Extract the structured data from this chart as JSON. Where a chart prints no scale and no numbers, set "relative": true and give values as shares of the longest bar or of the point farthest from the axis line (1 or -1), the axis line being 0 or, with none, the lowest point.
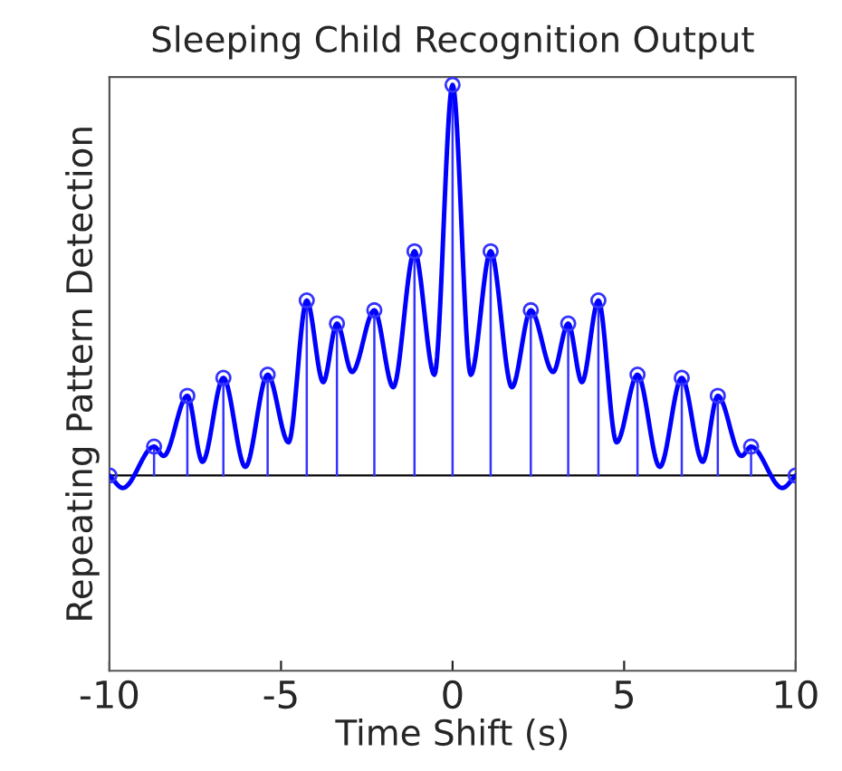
{
  "chart_data": {
    "type": "lollipop",
    "title": "Sleeping Child Recognition Output",
    "xlabel": "Time Shift (s)",
    "ylabel": "Repeating Pattern Detection",
    "relative": true,
    "xlim": [
      -10,
      10
    ],
    "xticks": [
      -10,
      -5,
      0,
      5,
      10
    ],
    "tick_labels": "x",
    "grid": false,
    "legend": false,
    "series": [
      {
        "type": "line",
        "color": "#0000ff",
        "marker": "none",
        "x": [
          -10,
          -9.61,
          -8.7,
          -8.42,
          -7.73,
          -7.29,
          -6.68,
          -6.04,
          -5.39,
          -4.78,
          -4.25,
          -3.77,
          -3.37,
          -2.93,
          -2.28,
          -1.73,
          -1.11,
          -0.53,
          0,
          0.53,
          1.11,
          1.73,
          2.28,
          2.93,
          3.37,
          3.77,
          4.25,
          4.78,
          5.39,
          6.04,
          6.68,
          7.29,
          7.73,
          8.42,
          8.7,
          9.61,
          10
        ],
        "values": [
          0,
          -0.032,
          0.074,
          0.05,
          0.204,
          0.035,
          0.25,
          0.022,
          0.258,
          0.085,
          0.448,
          0.239,
          0.389,
          0.265,
          0.423,
          0.226,
          0.574,
          0.258,
          1,
          0.258,
          0.574,
          0.226,
          0.423,
          0.265,
          0.389,
          0.239,
          0.448,
          0.085,
          0.258,
          0.022,
          0.25,
          0.035,
          0.204,
          0.05,
          0.074,
          -0.032,
          0
        ]
      },
      {
        "color": "#3333ff",
        "marker": "circle",
        "x": [
          -10,
          -8.7,
          -7.73,
          -6.68,
          -5.39,
          -4.25,
          -3.37,
          -2.28,
          -1.11,
          0,
          1.11,
          2.28,
          3.37,
          4.25,
          5.39,
          6.68,
          7.73,
          8.7,
          10
        ],
        "values": [
          0,
          0.074,
          0.204,
          0.25,
          0.258,
          0.448,
          0.389,
          0.423,
          0.574,
          1,
          0.574,
          0.423,
          0.389,
          0.448,
          0.258,
          0.25,
          0.204,
          0.074,
          0
        ]
      }
    ]
  }
}
